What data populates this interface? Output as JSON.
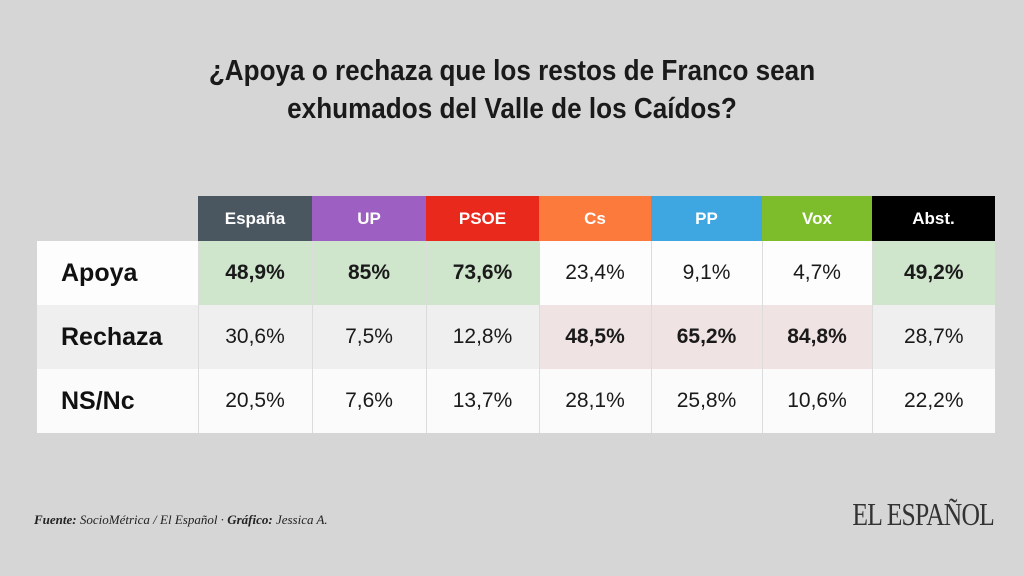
{
  "title_line1": "¿Apoya o rechaza que los restos de Franco sean",
  "title_line2": "exhumados del Valle de los Caídos?",
  "chart_data": {
    "type": "table",
    "columns": [
      {
        "label": "España",
        "color": "#4a5660"
      },
      {
        "label": "UP",
        "color": "#9d5fc2"
      },
      {
        "label": "PSOE",
        "color": "#e8291c"
      },
      {
        "label": "Cs",
        "color": "#fb7a3c"
      },
      {
        "label": "PP",
        "color": "#3ea6e0"
      },
      {
        "label": "Vox",
        "color": "#7dbd2b"
      },
      {
        "label": "Abst.",
        "color": "#000000"
      }
    ],
    "rows": [
      {
        "label": "Apoya",
        "values": [
          "48,9%",
          "85%",
          "73,6%",
          "23,4%",
          "9,1%",
          "4,7%",
          "49,2%"
        ],
        "highlight": [
          "green",
          "green",
          "green",
          "",
          "",
          "",
          "green"
        ]
      },
      {
        "label": "Rechaza",
        "values": [
          "30,6%",
          "7,5%",
          "12,8%",
          "48,5%",
          "65,2%",
          "84,8%",
          "28,7%"
        ],
        "highlight": [
          "",
          "",
          "",
          "red",
          "red",
          "red",
          ""
        ]
      },
      {
        "label": "NS/Nc",
        "values": [
          "20,5%",
          "7,6%",
          "13,7%",
          "28,1%",
          "25,8%",
          "10,6%",
          "22,2%"
        ],
        "highlight": [
          "",
          "",
          "",
          "",
          "",
          "",
          ""
        ]
      }
    ],
    "highlight_colors": {
      "green": "#cfe6cc",
      "red": "#f0e3e3"
    }
  },
  "footer": {
    "source_label": "Fuente:",
    "source_text": " SocioMétrica / El Español · ",
    "graphic_label": "Gráfico:",
    "graphic_text": " Jessica A."
  },
  "logo": "EL ESPAÑOL"
}
